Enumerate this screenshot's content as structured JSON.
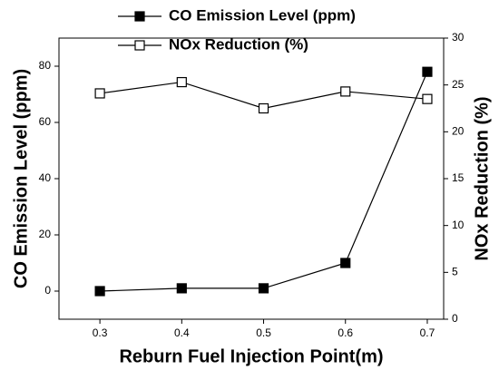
{
  "chart_data": {
    "type": "line",
    "x": [
      0.3,
      0.4,
      0.5,
      0.6,
      0.7
    ],
    "xlabel": "Reburn Fuel Injection Point(m)",
    "ylabel": "CO Emission Level (ppm)",
    "y2label": "NOx Reduction (%)",
    "xlim": [
      0.25,
      0.72
    ],
    "xticks": [
      0.3,
      0.4,
      0.5,
      0.6,
      0.7
    ],
    "ylim": [
      -10,
      90
    ],
    "yticks": [
      0,
      20,
      40,
      60,
      80
    ],
    "y2lim": [
      0,
      30
    ],
    "y2ticks": [
      0,
      5,
      10,
      15,
      20,
      25,
      30
    ],
    "series": [
      {
        "name": "CO Emission Level (ppm)",
        "color": "#000000",
        "marker": "filled-square",
        "values": [
          0,
          1,
          1,
          10,
          78
        ]
      },
      {
        "name": "NOx Reduction (%)",
        "color": "#000000",
        "marker": "open-square",
        "axis": "y2",
        "values": [
          24.1,
          25.3,
          22.5,
          24.3,
          23.5
        ]
      }
    ]
  }
}
